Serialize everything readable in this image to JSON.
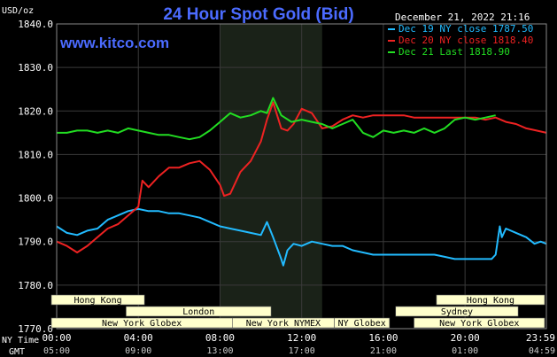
{
  "chart_data": {
    "type": "line",
    "title": "24 Hour Spot Gold (Bid)",
    "website": "www.kitco.com",
    "date_stamp": "December 21, 2022 21:16",
    "ylabel": "USD/oz",
    "ylim": [
      1770,
      1840
    ],
    "y_ticks": [
      "1840.0",
      "1830.0",
      "1820.0",
      "1810.0",
      "1800.0",
      "1790.0",
      "1780.0",
      "1770.0"
    ],
    "y_tick_values": [
      1840,
      1830,
      1820,
      1810,
      1800,
      1790,
      1780,
      1770
    ],
    "xlim": [
      0,
      23.983
    ],
    "x_ticks_ny": [
      "00:00",
      "04:00",
      "08:00",
      "12:00",
      "16:00",
      "20:00",
      "23:59"
    ],
    "x_ticks_gmt": [
      "05:00",
      "09:00",
      "13:00",
      "17:00",
      "21:00",
      "01:00",
      "04:59"
    ],
    "x_tick_hours": [
      0,
      4,
      8,
      12,
      16,
      20,
      23.983
    ],
    "ny_time_label": "NY Time",
    "gmt_label": "GMT",
    "grid": true,
    "nymex_shade_hours": [
      8,
      13
    ],
    "legend_position": "top-right",
    "series": [
      {
        "name": "Dec 19 NY close 1787.50",
        "color": "#22bbff",
        "points": [
          [
            0,
            1793.5
          ],
          [
            0.5,
            1792
          ],
          [
            1,
            1791.5
          ],
          [
            1.5,
            1792.5
          ],
          [
            2,
            1793
          ],
          [
            2.5,
            1795
          ],
          [
            3,
            1796
          ],
          [
            3.5,
            1797
          ],
          [
            4,
            1797.5
          ],
          [
            4.5,
            1797
          ],
          [
            5,
            1797
          ],
          [
            5.5,
            1796.5
          ],
          [
            6,
            1796.5
          ],
          [
            6.5,
            1796
          ],
          [
            7,
            1795.5
          ],
          [
            7.5,
            1794.5
          ],
          [
            8,
            1793.5
          ],
          [
            8.5,
            1793
          ],
          [
            9,
            1792.5
          ],
          [
            9.5,
            1792
          ],
          [
            10,
            1791.5
          ],
          [
            10.3,
            1794.5
          ],
          [
            10.6,
            1791
          ],
          [
            11,
            1786
          ],
          [
            11.1,
            1784.5
          ],
          [
            11.3,
            1788
          ],
          [
            11.6,
            1789.5
          ],
          [
            12,
            1789
          ],
          [
            12.5,
            1790
          ],
          [
            13,
            1789.5
          ],
          [
            13.5,
            1789
          ],
          [
            14,
            1789
          ],
          [
            14.5,
            1788
          ],
          [
            15,
            1787.5
          ],
          [
            15.5,
            1787
          ],
          [
            16,
            1787
          ],
          [
            16.5,
            1787
          ],
          [
            17,
            1787
          ],
          [
            17.5,
            1787
          ],
          [
            18,
            1787
          ],
          [
            18.5,
            1787
          ],
          [
            19,
            1786.5
          ],
          [
            19.5,
            1786
          ],
          [
            20,
            1786
          ],
          [
            20.5,
            1786
          ],
          [
            21,
            1786
          ],
          [
            21.3,
            1786
          ],
          [
            21.5,
            1787
          ],
          [
            21.7,
            1793.5
          ],
          [
            21.8,
            1791
          ],
          [
            22,
            1793
          ],
          [
            22.5,
            1792
          ],
          [
            23,
            1791
          ],
          [
            23.4,
            1789.5
          ],
          [
            23.7,
            1790
          ],
          [
            23.983,
            1789.5
          ]
        ]
      },
      {
        "name": "Dec 20 NY close 1818.40",
        "color": "#ee2222",
        "points": [
          [
            0,
            1790
          ],
          [
            0.5,
            1789
          ],
          [
            1,
            1787.5
          ],
          [
            1.5,
            1789
          ],
          [
            2,
            1791
          ],
          [
            2.5,
            1793
          ],
          [
            3,
            1794
          ],
          [
            3.5,
            1796
          ],
          [
            4,
            1798
          ],
          [
            4.2,
            1804
          ],
          [
            4.5,
            1802.5
          ],
          [
            5,
            1805
          ],
          [
            5.5,
            1807
          ],
          [
            6,
            1807
          ],
          [
            6.5,
            1808
          ],
          [
            7,
            1808.5
          ],
          [
            7.5,
            1806.5
          ],
          [
            8,
            1803
          ],
          [
            8.2,
            1800.5
          ],
          [
            8.5,
            1801
          ],
          [
            9,
            1806
          ],
          [
            9.5,
            1808.5
          ],
          [
            10,
            1813
          ],
          [
            10.3,
            1818
          ],
          [
            10.6,
            1822
          ],
          [
            11,
            1816
          ],
          [
            11.3,
            1815.5
          ],
          [
            11.6,
            1817
          ],
          [
            12,
            1820.5
          ],
          [
            12.5,
            1819.5
          ],
          [
            13,
            1816
          ],
          [
            13.5,
            1816.5
          ],
          [
            14,
            1818
          ],
          [
            14.5,
            1819
          ],
          [
            15,
            1818.5
          ],
          [
            15.5,
            1819
          ],
          [
            16,
            1819
          ],
          [
            16.5,
            1819
          ],
          [
            17,
            1819
          ],
          [
            17.5,
            1818.5
          ],
          [
            18,
            1818.5
          ],
          [
            18.5,
            1818.5
          ],
          [
            19,
            1818.5
          ],
          [
            19.5,
            1818.5
          ],
          [
            20,
            1818.5
          ],
          [
            20.5,
            1818.5
          ],
          [
            21,
            1818
          ],
          [
            21.5,
            1818.5
          ],
          [
            22,
            1817.5
          ],
          [
            22.5,
            1817
          ],
          [
            23,
            1816
          ],
          [
            23.5,
            1815.5
          ],
          [
            23.983,
            1815
          ]
        ]
      },
      {
        "name": "Dec 21 Last 1818.90",
        "color": "#22dd22",
        "points": [
          [
            0,
            1815
          ],
          [
            0.5,
            1815
          ],
          [
            1,
            1815.5
          ],
          [
            1.5,
            1815.5
          ],
          [
            2,
            1815
          ],
          [
            2.5,
            1815.5
          ],
          [
            3,
            1815
          ],
          [
            3.5,
            1816
          ],
          [
            4,
            1815.5
          ],
          [
            4.5,
            1815
          ],
          [
            5,
            1814.5
          ],
          [
            5.5,
            1814.5
          ],
          [
            6,
            1814
          ],
          [
            6.5,
            1813.5
          ],
          [
            7,
            1814
          ],
          [
            7.5,
            1815.5
          ],
          [
            8,
            1817.5
          ],
          [
            8.5,
            1819.5
          ],
          [
            9,
            1818.5
          ],
          [
            9.5,
            1819
          ],
          [
            10,
            1820
          ],
          [
            10.3,
            1819.5
          ],
          [
            10.6,
            1823
          ],
          [
            11,
            1819
          ],
          [
            11.5,
            1817.5
          ],
          [
            12,
            1818
          ],
          [
            12.5,
            1817.5
          ],
          [
            13,
            1817
          ],
          [
            13.5,
            1816
          ],
          [
            14,
            1817
          ],
          [
            14.5,
            1818
          ],
          [
            15,
            1815
          ],
          [
            15.5,
            1814
          ],
          [
            16,
            1815.5
          ],
          [
            16.5,
            1815
          ],
          [
            17,
            1815.5
          ],
          [
            17.5,
            1815
          ],
          [
            18,
            1816
          ],
          [
            18.5,
            1815
          ],
          [
            19,
            1816
          ],
          [
            19.5,
            1818
          ],
          [
            20,
            1818.5
          ],
          [
            20.5,
            1818
          ],
          [
            21,
            1818.5
          ],
          [
            21.5,
            1819
          ]
        ]
      }
    ],
    "sessions": [
      {
        "label": "Hong Kong",
        "start": -0.6,
        "end": 4.3
      },
      {
        "label": "London",
        "start": 3.4,
        "end": 10.5
      },
      {
        "label": "New York Globex",
        "start": -0.6,
        "end": 8.6
      },
      {
        "label": "New York NYMEX",
        "start": 8.6,
        "end": 13.6
      },
      {
        "label": "NY Globex",
        "start": 13.6,
        "end": 16.3
      },
      {
        "label": "Hong Kong",
        "start": 18.6,
        "end": 24.6
      },
      {
        "label": "Sydney",
        "start": 16.6,
        "end": 22.6
      },
      {
        "label": "New York Globex",
        "start": 17.5,
        "end": 24.6
      }
    ],
    "session_rows": [
      0,
      1,
      2,
      2,
      2,
      0,
      1,
      2
    ]
  },
  "colors": {
    "background": "#000000",
    "plot_background": "#000000",
    "grid": "#3a3a3a",
    "shade": "#1a2218",
    "axis_text": "#ffffff",
    "title": "#4b6bff",
    "site": "#4b6bff",
    "session_fill": "#ffffcc",
    "session_text": "#000000"
  }
}
